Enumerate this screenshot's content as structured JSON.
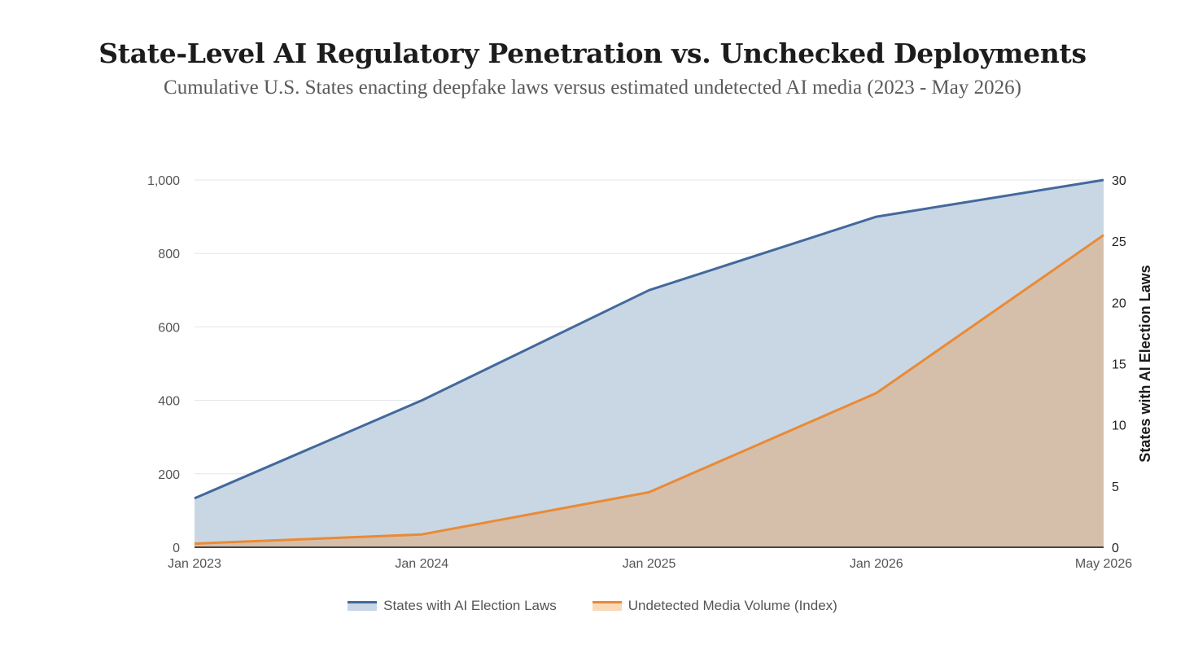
{
  "title": "State-Level AI Regulatory Penetration vs. Unchecked Deployments",
  "subtitle": "Cumulative U.S. States enacting deepfake laws versus estimated undetected AI media (2023 - May 2026)",
  "chart_data": {
    "type": "area",
    "categories": [
      "Jan 2023",
      "Jan 2024",
      "Jan 2025",
      "Jan 2026",
      "May 2026"
    ],
    "left_axis": {
      "ylim": [
        0,
        1000
      ],
      "ticks": [
        "0",
        "200",
        "400",
        "600",
        "800",
        "1,000"
      ],
      "tick_values": [
        0,
        200,
        400,
        600,
        800,
        1000
      ],
      "label": ""
    },
    "right_axis": {
      "ylim": [
        0,
        30
      ],
      "ticks": [
        "0",
        "5",
        "10",
        "15",
        "20",
        "25",
        "30"
      ],
      "tick_values": [
        0,
        5,
        10,
        15,
        20,
        25,
        30
      ],
      "label": "States with AI Election Laws"
    },
    "series": [
      {
        "name": "States with AI Election Laws",
        "axis": "right",
        "values": [
          4,
          12,
          21,
          27,
          30
        ],
        "color": "#43699c",
        "fill": "#c9d7e5"
      },
      {
        "name": "Undetected Media Volume (Index)",
        "axis": "left",
        "values": [
          10,
          35,
          150,
          420,
          850
        ],
        "color": "#ea8a35",
        "fill": "#d5bfab"
      }
    ],
    "grid": true,
    "legend_position": "bottom-center"
  }
}
